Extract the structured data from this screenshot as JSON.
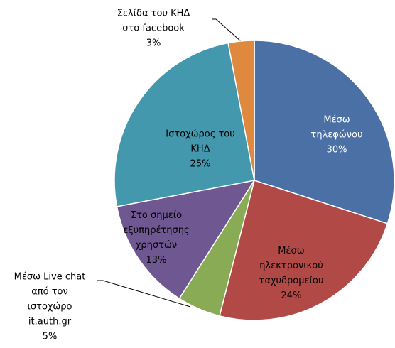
{
  "chart_data": {
    "type": "pie",
    "categories": [
      "Μέσω\nτηλεφώνου",
      "Μέσω\nηλεκτρονικού\nταχυδρομείου",
      "Μέσω Live chat\nαπό τον\nιστοχώρο\nit.auth.gr",
      "Στο σημείο\nεξυπηρέτησης\nχρηστών",
      "Ιστοχώρος του\nΚΗΔ",
      "Σελίδα του ΚΗΔ\nστο facebook"
    ],
    "values": [
      30,
      24,
      5,
      13,
      25,
      3
    ],
    "value_labels": [
      "30%",
      "24%",
      "5%",
      "13%",
      "25%",
      "3%"
    ],
    "colors": [
      "#4a70a6",
      "#b14a46",
      "#8aab55",
      "#6f5891",
      "#4398ae",
      "#df893f"
    ]
  }
}
